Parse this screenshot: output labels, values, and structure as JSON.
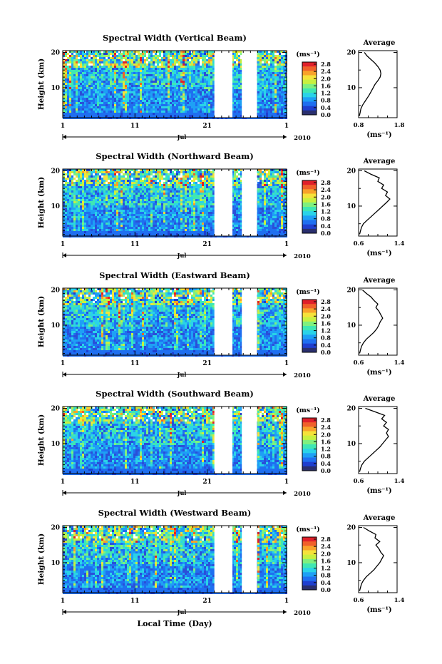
{
  "chart_data": {
    "type": "heatmap",
    "figure_xlabel": "Local Time (Day)",
    "month_label": "Jul",
    "year_label": "2010",
    "x_ticks": [
      "1",
      "11",
      "21",
      "1"
    ],
    "x_range_day": [
      1,
      32
    ],
    "data_gaps_day": [
      [
        22.0,
        24.5
      ],
      [
        25.8,
        27.9
      ]
    ],
    "colorbar": {
      "unit": "(ms⁻¹)",
      "ticks": [
        "2.8",
        "2.4",
        "2.0",
        "1.6",
        "1.2",
        "0.8",
        "0.4",
        "0.0"
      ],
      "range": [
        0.0,
        2.8
      ],
      "colors": [
        "#2a2f6e",
        "#1f3fcf",
        "#1f6ff0",
        "#1ea0f5",
        "#2ad3e8",
        "#3fe7b3",
        "#7ff07f",
        "#c8f040",
        "#f5e23a",
        "#f8a22a",
        "#f0602a",
        "#e0202a"
      ]
    },
    "ylabel": "Height (km)",
    "y_ticks": [
      "20",
      "10"
    ],
    "y_range_km": [
      1.5,
      20.5
    ],
    "profile": {
      "title": "Average",
      "xlabel": "(ms⁻¹)"
    },
    "panels": [
      {
        "title": "Spectral Width (Vertical Beam)",
        "profile_xticks": [
          "0.8",
          "1.8"
        ],
        "profile_xlim": [
          0.8,
          1.8
        ],
        "profile_heights": [
          2,
          3,
          4,
          5,
          6,
          7,
          8,
          9,
          10,
          11,
          12,
          13,
          14,
          15,
          16,
          17,
          18,
          19,
          20
        ],
        "profile_values": [
          0.82,
          0.84,
          0.86,
          0.9,
          0.96,
          1.02,
          1.08,
          1.13,
          1.18,
          1.23,
          1.3,
          1.36,
          1.38,
          1.36,
          1.3,
          1.22,
          1.12,
          1.02,
          0.95
        ]
      },
      {
        "title": "Spectral Width (Northward Beam)",
        "profile_xticks": [
          "0.6",
          "1.4"
        ],
        "profile_xlim": [
          0.6,
          1.4
        ],
        "profile_heights": [
          2,
          3,
          4,
          5,
          6,
          7,
          8,
          9,
          10,
          11,
          12,
          13,
          14,
          15,
          16,
          17,
          18,
          19,
          20
        ],
        "profile_values": [
          0.62,
          0.64,
          0.66,
          0.7,
          0.78,
          0.86,
          0.94,
          1.02,
          1.1,
          1.18,
          1.25,
          1.16,
          1.2,
          1.08,
          1.12,
          1.0,
          1.03,
          0.86,
          0.72
        ]
      },
      {
        "title": "Spectral Width (Eastward Beam)",
        "profile_xticks": [
          "0.6",
          "1.4"
        ],
        "profile_xlim": [
          0.6,
          1.4
        ],
        "profile_heights": [
          2,
          3,
          4,
          5,
          6,
          7,
          8,
          9,
          10,
          11,
          12,
          13,
          14,
          15,
          16,
          17,
          18,
          19,
          20
        ],
        "profile_values": [
          0.62,
          0.64,
          0.66,
          0.7,
          0.76,
          0.84,
          0.92,
          0.98,
          1.02,
          1.05,
          1.1,
          1.06,
          1.02,
          0.96,
          1.0,
          0.92,
          0.86,
          0.76,
          0.68
        ]
      },
      {
        "title": "Spectral Width (Southward Beam)",
        "profile_xticks": [
          "0.6",
          "1.4"
        ],
        "profile_xlim": [
          0.6,
          1.4
        ],
        "profile_heights": [
          2,
          3,
          4,
          5,
          6,
          7,
          8,
          9,
          10,
          11,
          12,
          13,
          14,
          15,
          16,
          17,
          18,
          19,
          20
        ],
        "profile_values": [
          0.62,
          0.64,
          0.67,
          0.72,
          0.8,
          0.88,
          0.96,
          1.04,
          1.1,
          1.16,
          1.22,
          1.18,
          1.22,
          1.12,
          1.18,
          1.08,
          1.14,
          0.94,
          0.74
        ]
      },
      {
        "title": "Spectral Width (Westward Beam)",
        "profile_xticks": [
          "0.6",
          "1.4"
        ],
        "profile_xlim": [
          0.6,
          1.4
        ],
        "profile_heights": [
          2,
          3,
          4,
          5,
          6,
          7,
          8,
          9,
          10,
          11,
          12,
          13,
          14,
          15,
          16,
          17,
          18,
          19,
          20
        ],
        "profile_values": [
          0.62,
          0.64,
          0.66,
          0.7,
          0.76,
          0.84,
          0.92,
          0.98,
          1.04,
          1.08,
          1.12,
          1.06,
          1.02,
          0.96,
          1.04,
          0.94,
          0.96,
          0.82,
          0.7
        ]
      }
    ]
  }
}
